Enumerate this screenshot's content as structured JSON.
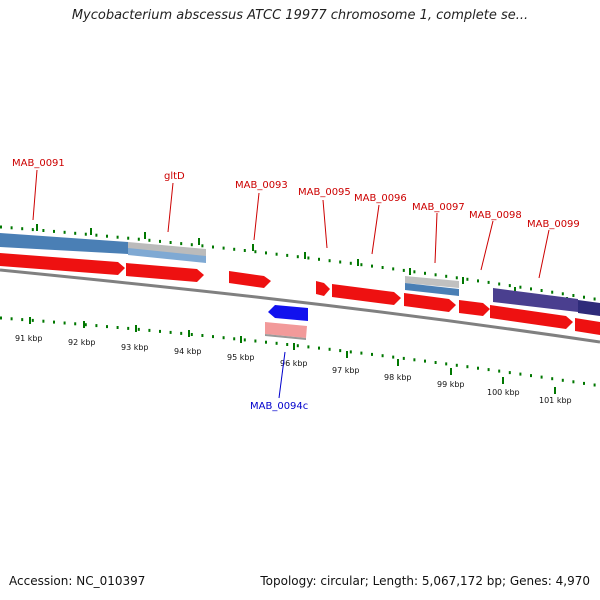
{
  "title": "Mycobacterium abscessus ATCC 19977 chromosome 1, complete se...",
  "footer": {
    "accession": "Accession: NC_010397",
    "summary": "Topology: circular; Length: 5,067,172 bp; Genes: 4,970"
  },
  "colors": {
    "gene": "#ee1111",
    "gene_label": "#cc0000",
    "reverse_gene": "#1111ee",
    "reverse_label": "#0000cc",
    "tick": "#007700",
    "backbone": "#808080",
    "cds_blue": "#4a7fb5",
    "cds_purple": "#4a3f8f"
  },
  "kbp_labels": [
    "91 kbp",
    "92 kbp",
    "93 kbp",
    "94 kbp",
    "95 kbp",
    "96 kbp",
    "97 kbp",
    "98 kbp",
    "99 kbp",
    "100 kbp",
    "101 kbp"
  ],
  "gene_labels": [
    {
      "id": "gl0",
      "text": "MAB_0091"
    },
    {
      "id": "gl1",
      "text": "gltD"
    },
    {
      "id": "gl2",
      "text": "MAB_0093"
    },
    {
      "id": "gl3",
      "text": "MAB_0095"
    },
    {
      "id": "gl4",
      "text": "MAB_0096"
    },
    {
      "id": "gl5",
      "text": "MAB_0097"
    },
    {
      "id": "gl6",
      "text": "MAB_0098"
    },
    {
      "id": "gl7",
      "text": "MAB_0099"
    },
    {
      "id": "gl8",
      "text": "MAB_0094c"
    }
  ]
}
